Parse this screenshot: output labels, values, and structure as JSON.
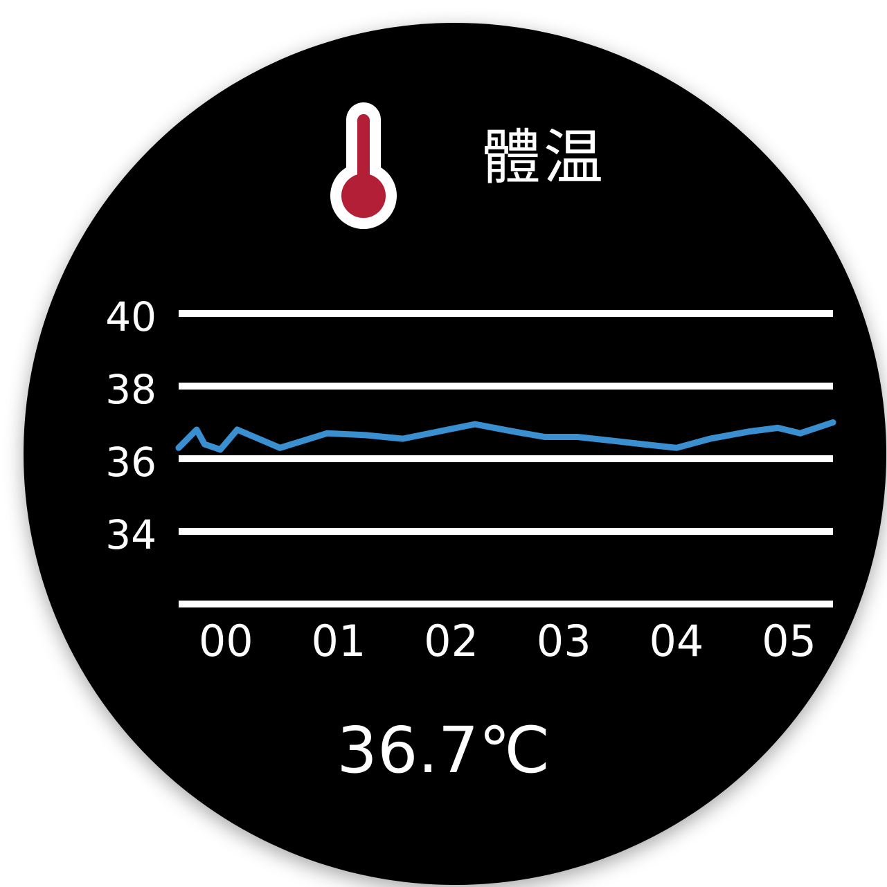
{
  "screen": {
    "title": "體温",
    "icon": "thermometer-icon",
    "reading": "36.7℃"
  },
  "colors": {
    "background": "#000000",
    "text": "#ffffff",
    "series": "#3a8fd1",
    "thermometer_fill": "#b31f36"
  },
  "chart_data": {
    "type": "line",
    "title": "",
    "xlabel": "",
    "ylabel": "",
    "x_ticks": [
      "00",
      "01",
      "02",
      "03",
      "04",
      "05"
    ],
    "y_ticks": [
      "40",
      "38",
      "36",
      "34"
    ],
    "ylim": [
      32,
      40
    ],
    "xlim": [
      -0.42,
      5.39
    ],
    "grid": true,
    "series": [
      {
        "x": [
          -0.42,
          -0.26,
          -0.19,
          -0.05,
          0.1,
          0.48,
          0.9,
          1.24,
          1.57,
          1.89,
          2.21,
          2.55,
          2.83,
          3.12,
          3.42,
          3.7,
          4.0,
          4.3,
          4.65,
          4.9,
          5.1,
          5.39
        ],
        "y": [
          36.3,
          36.8,
          36.4,
          36.25,
          36.8,
          36.3,
          36.7,
          36.65,
          36.55,
          36.75,
          36.95,
          36.75,
          36.6,
          36.6,
          36.5,
          36.4,
          36.3,
          36.55,
          36.75,
          36.85,
          36.7,
          37.0
        ]
      }
    ]
  }
}
